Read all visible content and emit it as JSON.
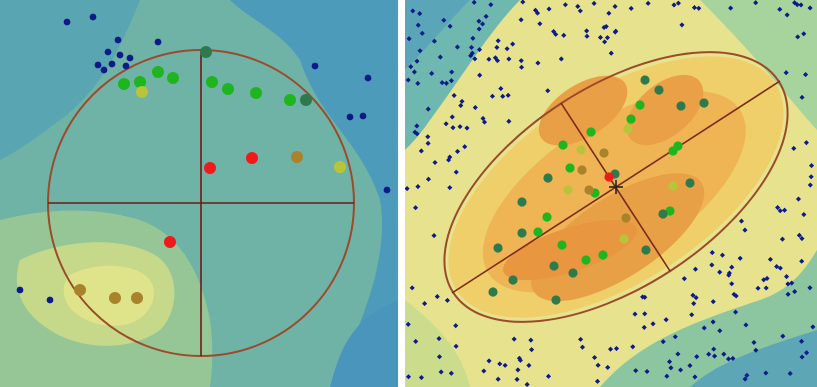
{
  "panels": {
    "left": {
      "colors": {
        "background": "#5ea8b0",
        "contour_dark": "#4a97b4",
        "contour_mid": "#73b3a3",
        "contour_light": "#a7cc8e",
        "contour_yellow": "#d8df82",
        "ellipse": "#a0522d",
        "axes": "#6b1a1a"
      },
      "points": {
        "navy": [
          [
            67,
            22
          ],
          [
            93,
            17
          ],
          [
            118,
            40
          ],
          [
            108,
            52
          ],
          [
            120,
            55
          ],
          [
            98,
            65
          ],
          [
            104,
            70
          ],
          [
            112,
            64
          ],
          [
            126,
            66
          ],
          [
            130,
            58
          ],
          [
            158,
            42
          ],
          [
            315,
            66
          ],
          [
            368,
            78
          ],
          [
            363,
            116
          ],
          [
            350,
            117
          ],
          [
            387,
            190
          ],
          [
            20,
            290
          ],
          [
            50,
            300
          ]
        ],
        "green": [
          [
            124,
            84
          ],
          [
            140,
            82
          ],
          [
            158,
            72
          ],
          [
            173,
            78
          ],
          [
            212,
            82
          ],
          [
            228,
            89
          ],
          [
            256,
            93
          ],
          [
            290,
            100
          ]
        ],
        "darkgreen": [
          [
            206,
            52
          ],
          [
            306,
            100
          ]
        ],
        "yellowgreen": [
          [
            142,
            92
          ],
          [
            340,
            167
          ]
        ],
        "red": [
          [
            210,
            168
          ],
          [
            252,
            158
          ],
          [
            170,
            242
          ]
        ],
        "brown": [
          [
            80,
            290
          ],
          [
            115,
            298
          ],
          [
            137,
            298
          ],
          [
            297,
            157
          ]
        ]
      }
    },
    "right": {
      "colors": {
        "outer": "#7fc0a4",
        "mid": "#e8e38a",
        "inner": "#efb74f",
        "core": "#e69a47",
        "ellipse": "#a0522d",
        "axes": "#7b2b12"
      },
      "points": {
        "green": [
          [
            563,
            145
          ],
          [
            591,
            132
          ],
          [
            631,
            119
          ],
          [
            640,
            105
          ],
          [
            570,
            168
          ],
          [
            595,
            193
          ],
          [
            547,
            217
          ],
          [
            538,
            232
          ],
          [
            562,
            245
          ],
          [
            586,
            260
          ],
          [
            603,
            255
          ],
          [
            670,
            211
          ],
          [
            673,
            151
          ],
          [
            678,
            146
          ]
        ],
        "darkgreen": [
          [
            645,
            80
          ],
          [
            659,
            90
          ],
          [
            681,
            106
          ],
          [
            704,
            103
          ],
          [
            548,
            178
          ],
          [
            522,
            202
          ],
          [
            522,
            233
          ],
          [
            498,
            248
          ],
          [
            513,
            280
          ],
          [
            554,
            266
          ],
          [
            573,
            273
          ],
          [
            646,
            250
          ],
          [
            690,
            183
          ],
          [
            615,
            174
          ],
          [
            663,
            214
          ],
          [
            493,
            292
          ],
          [
            556,
            300
          ]
        ],
        "yellowgreen": [
          [
            628,
            129
          ],
          [
            581,
            150
          ],
          [
            568,
            190
          ],
          [
            673,
            186
          ],
          [
            624,
            239
          ]
        ],
        "brown": [
          [
            604,
            153
          ],
          [
            582,
            170
          ],
          [
            589,
            190
          ],
          [
            626,
            218
          ]
        ],
        "red": [
          [
            609,
            177
          ]
        ]
      }
    }
  }
}
